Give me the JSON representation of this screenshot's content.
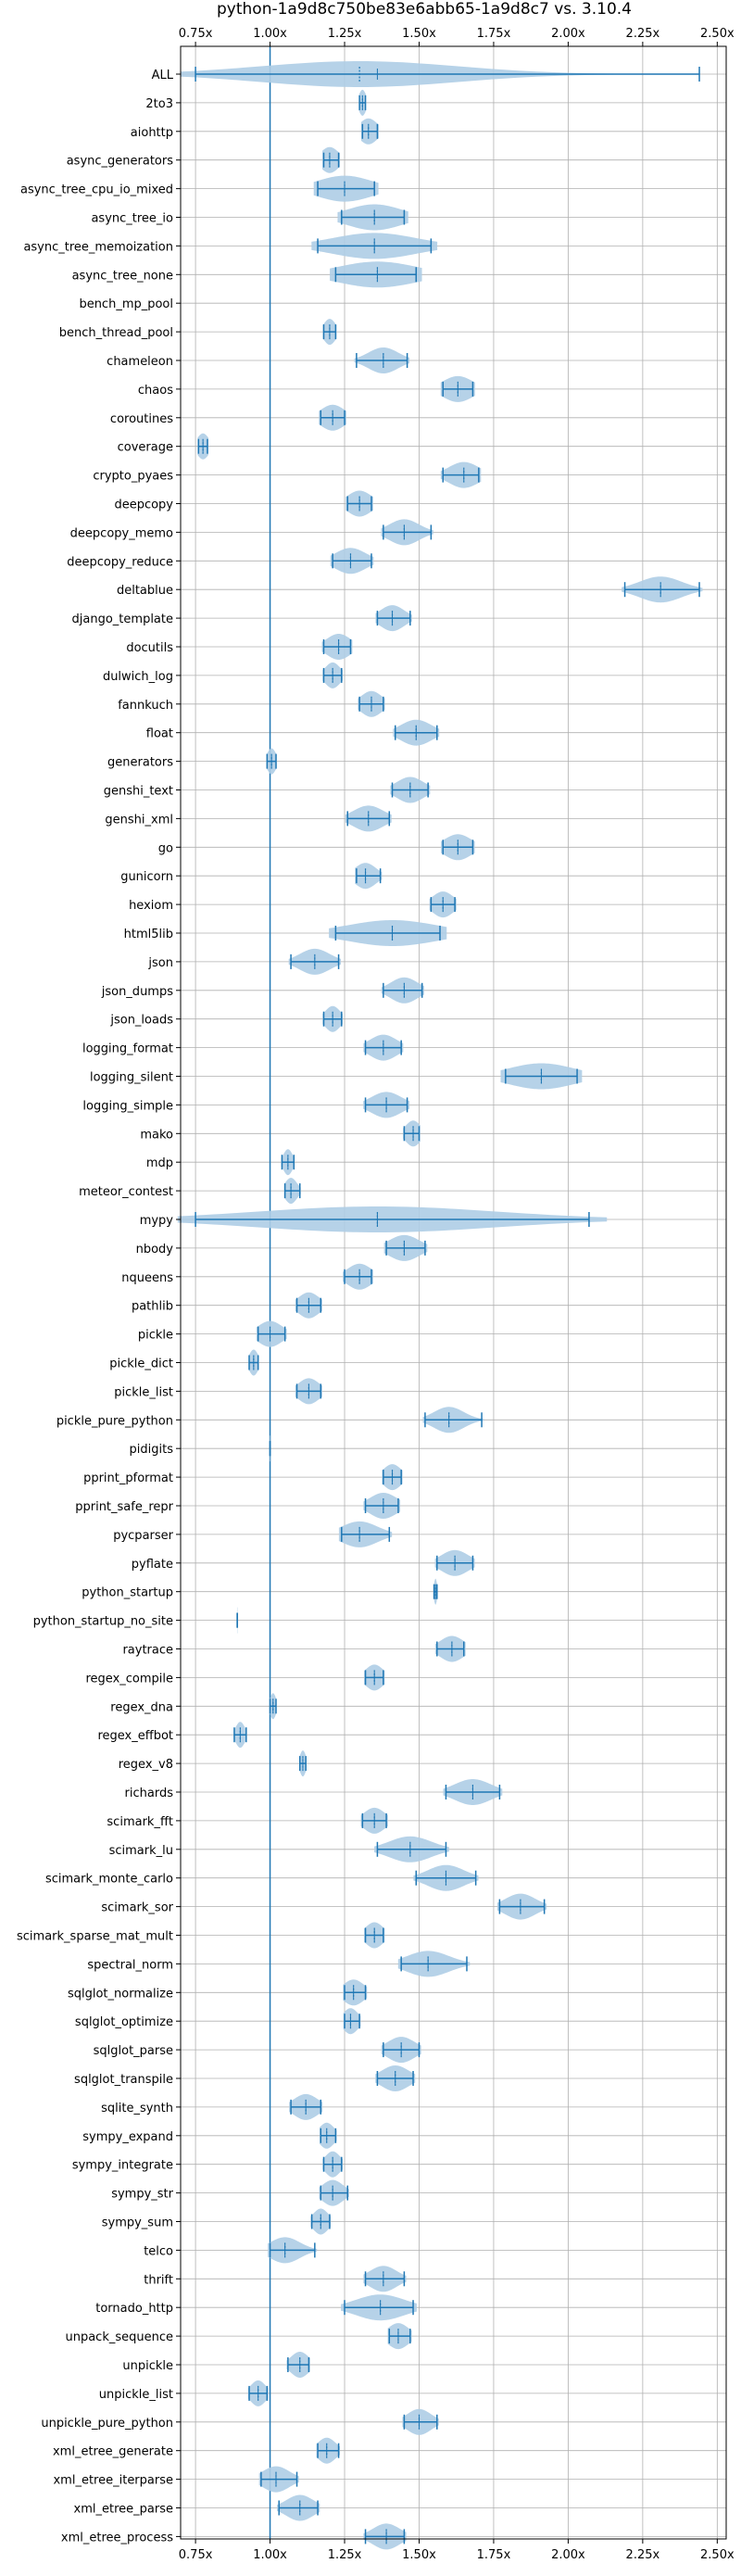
{
  "chart_data": {
    "type": "violin",
    "title": "python-1a9d8c750be83e6abb65-1a9d8c7 vs. 3.10.4",
    "xlim": [
      0.7,
      2.53
    ],
    "xticks": [
      0.75,
      1.0,
      1.25,
      1.5,
      1.75,
      2.0,
      2.25,
      2.5
    ],
    "xtick_labels": [
      "0.75x",
      "1.00x",
      "1.25x",
      "1.50x",
      "1.75x",
      "2.00x",
      "2.25x",
      "2.50x"
    ],
    "reference_line": 1.0,
    "colors": {
      "violin": "#aecde6",
      "line": "#1f77b4",
      "grid": "#b0b0b0",
      "axis": "#000000"
    },
    "benchmarks": [
      {
        "name": "ALL",
        "min": 0.75,
        "max": 2.44,
        "median": 1.3,
        "mean": 1.36,
        "spread": 0.33
      },
      {
        "name": "2to3",
        "min": 1.3,
        "max": 1.32,
        "median": 1.31,
        "mean": 1.31,
        "spread": 0.012
      },
      {
        "name": "aiohttp",
        "min": 1.31,
        "max": 1.36,
        "median": 1.33,
        "mean": 1.33,
        "spread": 0.03
      },
      {
        "name": "async_generators",
        "min": 1.18,
        "max": 1.23,
        "median": 1.2,
        "mean": 1.2,
        "spread": 0.03
      },
      {
        "name": "async_tree_cpu_io_mixed",
        "min": 1.16,
        "max": 1.35,
        "median": 1.25,
        "mean": 1.25,
        "spread": 0.09
      },
      {
        "name": "async_tree_io",
        "min": 1.24,
        "max": 1.45,
        "median": 1.35,
        "mean": 1.35,
        "spread": 0.09
      },
      {
        "name": "async_tree_memoization",
        "min": 1.16,
        "max": 1.54,
        "median": 1.35,
        "mean": 1.35,
        "spread": 0.14
      },
      {
        "name": "async_tree_none",
        "min": 1.22,
        "max": 1.49,
        "median": 1.36,
        "mean": 1.36,
        "spread": 0.13
      },
      {
        "name": "bench_mp_pool",
        "min": null,
        "max": null,
        "median": null,
        "mean": null,
        "spread": 0
      },
      {
        "name": "bench_thread_pool",
        "min": 1.18,
        "max": 1.22,
        "median": 1.2,
        "mean": 1.2,
        "spread": 0.02
      },
      {
        "name": "chameleon",
        "min": 1.29,
        "max": 1.46,
        "median": 1.38,
        "mean": 1.38,
        "spread": 0.05
      },
      {
        "name": "chaos",
        "min": 1.58,
        "max": 1.68,
        "median": 1.63,
        "mean": 1.63,
        "spread": 0.05
      },
      {
        "name": "coroutines",
        "min": 1.17,
        "max": 1.25,
        "median": 1.21,
        "mean": 1.21,
        "spread": 0.04
      },
      {
        "name": "coverage",
        "min": 0.76,
        "max": 0.79,
        "median": 0.775,
        "mean": 0.775,
        "spread": 0.02
      },
      {
        "name": "crypto_pyaes",
        "min": 1.58,
        "max": 1.7,
        "median": 1.65,
        "mean": 1.65,
        "spread": 0.05
      },
      {
        "name": "deepcopy",
        "min": 1.26,
        "max": 1.34,
        "median": 1.3,
        "mean": 1.3,
        "spread": 0.04
      },
      {
        "name": "deepcopy_memo",
        "min": 1.38,
        "max": 1.54,
        "median": 1.45,
        "mean": 1.45,
        "spread": 0.05
      },
      {
        "name": "deepcopy_reduce",
        "min": 1.21,
        "max": 1.34,
        "median": 1.27,
        "mean": 1.27,
        "spread": 0.05
      },
      {
        "name": "deltablue",
        "min": 2.19,
        "max": 2.44,
        "median": 2.31,
        "mean": 2.31,
        "spread": 0.07
      },
      {
        "name": "django_template",
        "min": 1.36,
        "max": 1.47,
        "median": 1.41,
        "mean": 1.41,
        "spread": 0.04
      },
      {
        "name": "docutils",
        "min": 1.18,
        "max": 1.27,
        "median": 1.23,
        "mean": 1.23,
        "spread": 0.04
      },
      {
        "name": "dulwich_log",
        "min": 1.18,
        "max": 1.24,
        "median": 1.21,
        "mean": 1.21,
        "spread": 0.025
      },
      {
        "name": "fannkuch",
        "min": 1.3,
        "max": 1.38,
        "median": 1.34,
        "mean": 1.34,
        "spread": 0.035
      },
      {
        "name": "float",
        "min": 1.42,
        "max": 1.56,
        "median": 1.49,
        "mean": 1.49,
        "spread": 0.05
      },
      {
        "name": "generators",
        "min": 0.99,
        "max": 1.02,
        "median": 1.005,
        "mean": 1.005,
        "spread": 0.015
      },
      {
        "name": "genshi_text",
        "min": 1.41,
        "max": 1.53,
        "median": 1.47,
        "mean": 1.47,
        "spread": 0.045
      },
      {
        "name": "genshi_xml",
        "min": 1.26,
        "max": 1.4,
        "median": 1.33,
        "mean": 1.33,
        "spread": 0.05
      },
      {
        "name": "go",
        "min": 1.58,
        "max": 1.68,
        "median": 1.63,
        "mean": 1.63,
        "spread": 0.045
      },
      {
        "name": "gunicorn",
        "min": 1.29,
        "max": 1.37,
        "median": 1.32,
        "mean": 1.32,
        "spread": 0.035
      },
      {
        "name": "hexiom",
        "min": 1.54,
        "max": 1.62,
        "median": 1.58,
        "mean": 1.58,
        "spread": 0.035
      },
      {
        "name": "html5lib",
        "min": 1.22,
        "max": 1.57,
        "median": 1.41,
        "mean": 1.41,
        "spread": 0.15
      },
      {
        "name": "json",
        "min": 1.07,
        "max": 1.23,
        "median": 1.15,
        "mean": 1.15,
        "spread": 0.05
      },
      {
        "name": "json_dumps",
        "min": 1.38,
        "max": 1.51,
        "median": 1.45,
        "mean": 1.45,
        "spread": 0.045
      },
      {
        "name": "json_loads",
        "min": 1.18,
        "max": 1.24,
        "median": 1.21,
        "mean": 1.21,
        "spread": 0.025
      },
      {
        "name": "logging_format",
        "min": 1.32,
        "max": 1.44,
        "median": 1.38,
        "mean": 1.38,
        "spread": 0.045
      },
      {
        "name": "logging_silent",
        "min": 1.79,
        "max": 2.03,
        "median": 1.91,
        "mean": 1.91,
        "spread": 0.11
      },
      {
        "name": "logging_simple",
        "min": 1.32,
        "max": 1.46,
        "median": 1.39,
        "mean": 1.39,
        "spread": 0.05
      },
      {
        "name": "mako",
        "min": 1.45,
        "max": 1.5,
        "median": 1.48,
        "mean": 1.48,
        "spread": 0.025
      },
      {
        "name": "mdp",
        "min": 1.04,
        "max": 1.08,
        "median": 1.06,
        "mean": 1.06,
        "spread": 0.015
      },
      {
        "name": "meteor_contest",
        "min": 1.05,
        "max": 1.1,
        "median": 1.07,
        "mean": 1.07,
        "spread": 0.02
      },
      {
        "name": "mypy",
        "min": 0.75,
        "max": 2.07,
        "median": 1.36,
        "mean": 1.36,
        "spread": 0.4
      },
      {
        "name": "nbody",
        "min": 1.39,
        "max": 1.52,
        "median": 1.45,
        "mean": 1.45,
        "spread": 0.05
      },
      {
        "name": "nqueens",
        "min": 1.25,
        "max": 1.34,
        "median": 1.3,
        "mean": 1.3,
        "spread": 0.04
      },
      {
        "name": "pathlib",
        "min": 1.09,
        "max": 1.17,
        "median": 1.13,
        "mean": 1.13,
        "spread": 0.035
      },
      {
        "name": "pickle",
        "min": 0.96,
        "max": 1.05,
        "median": 1.0,
        "mean": 1.0,
        "spread": 0.04
      },
      {
        "name": "pickle_dict",
        "min": 0.93,
        "max": 0.96,
        "median": 0.945,
        "mean": 0.945,
        "spread": 0.015
      },
      {
        "name": "pickle_list",
        "min": 1.09,
        "max": 1.17,
        "median": 1.13,
        "mean": 1.13,
        "spread": 0.035
      },
      {
        "name": "pickle_pure_python",
        "min": 1.52,
        "max": 1.71,
        "median": 1.6,
        "mean": 1.6,
        "spread": 0.05
      },
      {
        "name": "pidigits",
        "min": 1.0,
        "max": 1.0,
        "median": 1.0,
        "mean": 1.0,
        "spread": 0.005
      },
      {
        "name": "pprint_pformat",
        "min": 1.38,
        "max": 1.44,
        "median": 1.41,
        "mean": 1.41,
        "spread": 0.03
      },
      {
        "name": "pprint_safe_repr",
        "min": 1.32,
        "max": 1.43,
        "median": 1.38,
        "mean": 1.38,
        "spread": 0.045
      },
      {
        "name": "pycparser",
        "min": 1.24,
        "max": 1.4,
        "median": 1.3,
        "mean": 1.3,
        "spread": 0.06
      },
      {
        "name": "pyflate",
        "min": 1.56,
        "max": 1.68,
        "median": 1.62,
        "mean": 1.62,
        "spread": 0.045
      },
      {
        "name": "python_startup",
        "min": 1.55,
        "max": 1.56,
        "median": 1.555,
        "mean": 1.555,
        "spread": 0.005
      },
      {
        "name": "python_startup_no_site",
        "min": 0.89,
        "max": 0.89,
        "median": 0.89,
        "mean": 0.89,
        "spread": 0.004
      },
      {
        "name": "raytrace",
        "min": 1.56,
        "max": 1.65,
        "median": 1.61,
        "mean": 1.61,
        "spread": 0.04
      },
      {
        "name": "regex_compile",
        "min": 1.32,
        "max": 1.38,
        "median": 1.35,
        "mean": 1.35,
        "spread": 0.03
      },
      {
        "name": "regex_dna",
        "min": 1.0,
        "max": 1.02,
        "median": 1.01,
        "mean": 1.01,
        "spread": 0.01
      },
      {
        "name": "regex_effbot",
        "min": 0.88,
        "max": 0.92,
        "median": 0.9,
        "mean": 0.9,
        "spread": 0.015
      },
      {
        "name": "regex_v8",
        "min": 1.1,
        "max": 1.12,
        "median": 1.11,
        "mean": 1.11,
        "spread": 0.01
      },
      {
        "name": "richards",
        "min": 1.59,
        "max": 1.77,
        "median": 1.68,
        "mean": 1.68,
        "spread": 0.06
      },
      {
        "name": "scimark_fft",
        "min": 1.31,
        "max": 1.39,
        "median": 1.35,
        "mean": 1.35,
        "spread": 0.035
      },
      {
        "name": "scimark_lu",
        "min": 1.36,
        "max": 1.59,
        "median": 1.47,
        "mean": 1.47,
        "spread": 0.07
      },
      {
        "name": "scimark_monte_carlo",
        "min": 1.49,
        "max": 1.69,
        "median": 1.59,
        "mean": 1.59,
        "spread": 0.06
      },
      {
        "name": "scimark_sor",
        "min": 1.77,
        "max": 1.92,
        "median": 1.84,
        "mean": 1.84,
        "spread": 0.05
      },
      {
        "name": "scimark_sparse_mat_mult",
        "min": 1.32,
        "max": 1.38,
        "median": 1.35,
        "mean": 1.35,
        "spread": 0.03
      },
      {
        "name": "spectral_norm",
        "min": 1.44,
        "max": 1.66,
        "median": 1.53,
        "mean": 1.53,
        "spread": 0.07
      },
      {
        "name": "sqlglot_normalize",
        "min": 1.25,
        "max": 1.32,
        "median": 1.28,
        "mean": 1.28,
        "spread": 0.035
      },
      {
        "name": "sqlglot_optimize",
        "min": 1.25,
        "max": 1.3,
        "median": 1.27,
        "mean": 1.27,
        "spread": 0.025
      },
      {
        "name": "sqlglot_parse",
        "min": 1.38,
        "max": 1.5,
        "median": 1.44,
        "mean": 1.44,
        "spread": 0.045
      },
      {
        "name": "sqlglot_transpile",
        "min": 1.36,
        "max": 1.48,
        "median": 1.42,
        "mean": 1.42,
        "spread": 0.045
      },
      {
        "name": "sqlite_synth",
        "min": 1.07,
        "max": 1.17,
        "median": 1.12,
        "mean": 1.12,
        "spread": 0.04
      },
      {
        "name": "sympy_expand",
        "min": 1.17,
        "max": 1.22,
        "median": 1.19,
        "mean": 1.19,
        "spread": 0.025
      },
      {
        "name": "sympy_integrate",
        "min": 1.18,
        "max": 1.24,
        "median": 1.21,
        "mean": 1.21,
        "spread": 0.025
      },
      {
        "name": "sympy_str",
        "min": 1.17,
        "max": 1.26,
        "median": 1.21,
        "mean": 1.21,
        "spread": 0.035
      },
      {
        "name": "sympy_sum",
        "min": 1.14,
        "max": 1.2,
        "median": 1.17,
        "mean": 1.17,
        "spread": 0.025
      },
      {
        "name": "telco",
        "min": 1.0,
        "max": 1.15,
        "median": 1.05,
        "mean": 1.05,
        "spread": 0.05
      },
      {
        "name": "thrift",
        "min": 1.32,
        "max": 1.45,
        "median": 1.38,
        "mean": 1.38,
        "spread": 0.045
      },
      {
        "name": "tornado_http",
        "min": 1.25,
        "max": 1.48,
        "median": 1.37,
        "mean": 1.37,
        "spread": 0.08
      },
      {
        "name": "unpack_sequence",
        "min": 1.4,
        "max": 1.47,
        "median": 1.43,
        "mean": 1.43,
        "spread": 0.035
      },
      {
        "name": "unpickle",
        "min": 1.06,
        "max": 1.13,
        "median": 1.1,
        "mean": 1.1,
        "spread": 0.03
      },
      {
        "name": "unpickle_list",
        "min": 0.93,
        "max": 0.99,
        "median": 0.96,
        "mean": 0.96,
        "spread": 0.025
      },
      {
        "name": "unpickle_pure_python",
        "min": 1.45,
        "max": 1.56,
        "median": 1.5,
        "mean": 1.5,
        "spread": 0.04
      },
      {
        "name": "xml_etree_generate",
        "min": 1.16,
        "max": 1.23,
        "median": 1.19,
        "mean": 1.19,
        "spread": 0.03
      },
      {
        "name": "xml_etree_iterparse",
        "min": 0.97,
        "max": 1.09,
        "median": 1.02,
        "mean": 1.02,
        "spread": 0.045
      },
      {
        "name": "xml_etree_parse",
        "min": 1.03,
        "max": 1.16,
        "median": 1.1,
        "mean": 1.1,
        "spread": 0.045
      },
      {
        "name": "xml_etree_process",
        "min": 1.32,
        "max": 1.45,
        "median": 1.39,
        "mean": 1.39,
        "spread": 0.045
      }
    ]
  }
}
